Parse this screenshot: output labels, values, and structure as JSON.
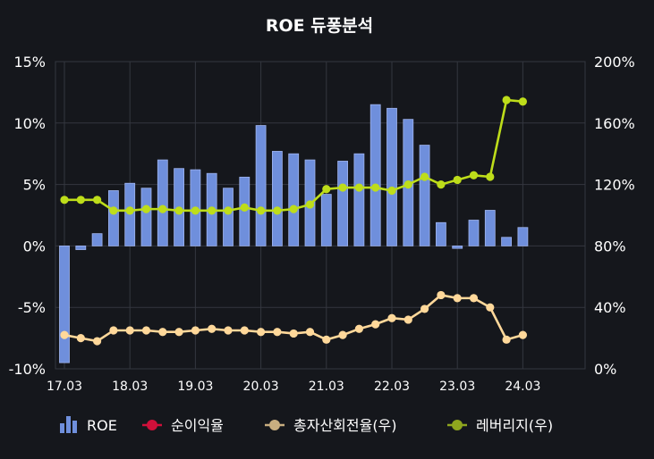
{
  "chart_data": {
    "type": "bar",
    "title": "ROE 듀퐁분석",
    "x_tick_labels": [
      "17.03",
      "18.03",
      "19.03",
      "20.03",
      "21.03",
      "22.03",
      "23.03",
      "24.03"
    ],
    "left_axis": {
      "ylim": [
        -10,
        15
      ],
      "tick_labels": [
        "15%",
        "10%",
        "5%",
        "0%",
        "-5%",
        "-10%"
      ]
    },
    "right_axis": {
      "ylim": [
        0,
        200
      ],
      "tick_labels": [
        "200%",
        "160%",
        "120%",
        "80%",
        "40%",
        "0%"
      ]
    },
    "grid": true,
    "legend_placement": "bottom",
    "series": [
      {
        "name": "ROE",
        "kind": "bar",
        "axis": "left",
        "color": "#6f8fdc",
        "values": [
          -9.5,
          -0.3,
          1.0,
          4.5,
          5.1,
          4.7,
          7.0,
          6.3,
          6.2,
          5.9,
          4.7,
          5.6,
          9.8,
          7.7,
          7.5,
          7.0,
          4.2,
          6.9,
          7.5,
          11.5,
          11.2,
          10.3,
          8.2,
          1.9,
          -0.2,
          2.1,
          2.9,
          0.7,
          1.5
        ]
      },
      {
        "name": "순이익율",
        "kind": "line",
        "axis": "left",
        "color": "#d0103a",
        "values": []
      },
      {
        "name": "총자산회전율(우)",
        "kind": "line",
        "axis": "right",
        "color": "#ffd89a",
        "values": [
          22,
          20,
          18,
          25,
          25,
          25,
          24,
          24,
          25,
          26,
          25,
          25,
          24,
          24,
          23,
          24,
          19,
          22,
          26,
          29,
          33,
          32,
          39,
          48,
          46,
          46,
          40,
          19,
          22
        ]
      },
      {
        "name": "레버리지(우)",
        "kind": "line",
        "axis": "right",
        "color": "#bedd1a",
        "values": [
          110,
          110,
          110,
          103,
          103,
          104,
          104,
          103,
          103,
          103,
          103,
          105,
          103,
          103,
          104,
          107,
          117,
          118,
          118,
          118,
          116,
          120,
          125,
          120,
          123,
          126,
          125,
          175,
          174
        ]
      }
    ]
  },
  "legend": {
    "items": [
      {
        "label": "ROE",
        "icon": "bar-chart-icon",
        "color": "#6f8fdc"
      },
      {
        "label": "순이익율",
        "icon": "line-dot-icon",
        "color": "#d0103a"
      },
      {
        "label": "총자산회전율(우)",
        "icon": "line-dot-icon",
        "color": "#c8ae80"
      },
      {
        "label": "레버리지(우)",
        "icon": "line-dot-icon",
        "color": "#8fa61e"
      }
    ]
  }
}
